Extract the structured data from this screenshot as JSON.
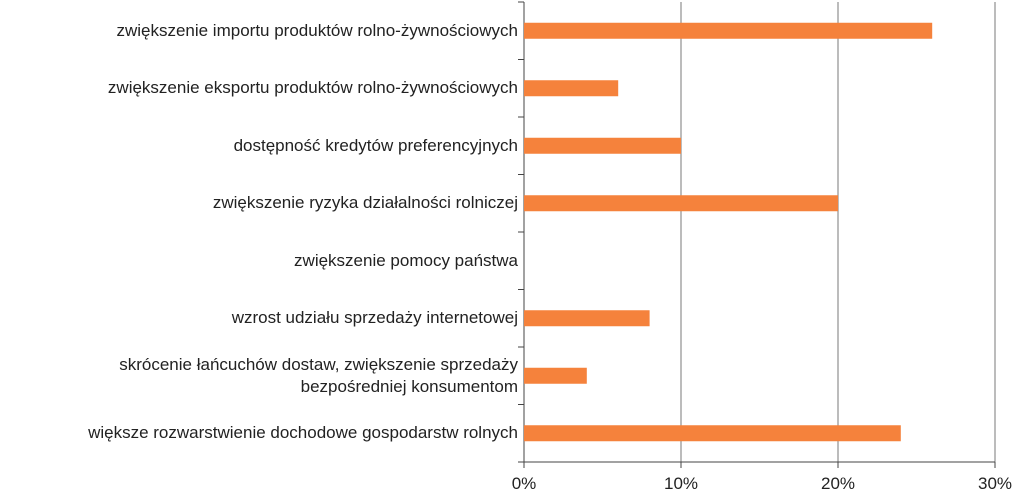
{
  "chart_data": {
    "type": "barh",
    "categories": [
      "zwiększenie importu produktów rolno-żywnościowych",
      "zwiększenie eksportu produktów rolno-żywnościowych",
      "dostępność kredytów preferencyjnych",
      "zwiększenie ryzyka działalności rolniczej",
      "zwiększenie pomocy państwa",
      "wzrost udziału sprzedaży internetowej",
      "skrócenie łańcuchów dostaw, zwiększenie sprzedaży bezpośredniej konsumentom",
      "większe rozwarstwienie dochodowe gospodarstw rolnych"
    ],
    "values": [
      26,
      6,
      10,
      20,
      0,
      8,
      4,
      24
    ],
    "color": "#f5823c",
    "xlim": [
      0,
      30
    ],
    "xticks": [
      {
        "value": 0,
        "label": "0%"
      },
      {
        "value": 10,
        "label": "10%"
      },
      {
        "value": 20,
        "label": "20%"
      },
      {
        "value": 30,
        "label": "30%"
      }
    ],
    "grid": true
  }
}
